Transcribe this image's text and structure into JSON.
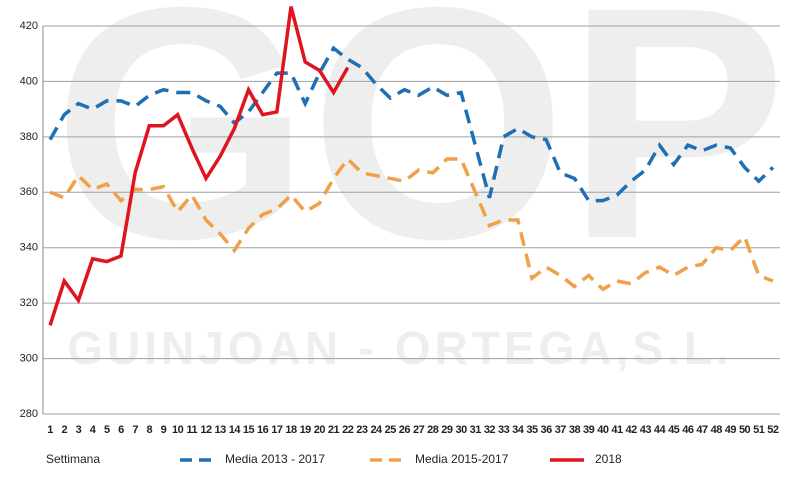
{
  "chart_data": {
    "type": "line",
    "watermark": "GOP",
    "watermark_subtitle": "GUINJOAN - ORTEGA,S.L.",
    "x_label": "Settimana",
    "categories": [
      "1",
      "2",
      "3",
      "4",
      "5",
      "6",
      "7",
      "8",
      "9",
      "10",
      "11",
      "12",
      "13",
      "14",
      "15",
      "16",
      "17",
      "18",
      "19",
      "20",
      "21",
      "22",
      "23",
      "24",
      "25",
      "26",
      "27",
      "28",
      "29",
      "30",
      "31",
      "32",
      "33",
      "34",
      "35",
      "36",
      "37",
      "38",
      "39",
      "40",
      "41",
      "42",
      "43",
      "44",
      "45",
      "46",
      "47",
      "48",
      "49",
      "50",
      "51",
      "52"
    ],
    "series": [
      {
        "name": "Media 2013 - 2017",
        "color": "#1f6fb5",
        "dashed": true,
        "values": [
          379,
          388,
          392,
          390,
          393,
          393,
          391,
          395,
          397,
          396,
          396,
          393,
          391,
          385,
          389,
          396,
          403,
          403,
          392,
          403,
          412,
          408,
          405,
          399,
          394,
          397,
          395,
          398,
          395,
          396,
          377,
          358,
          380,
          383,
          380,
          379,
          367,
          365,
          357,
          357,
          359,
          364,
          368,
          377,
          370,
          377,
          375,
          377,
          376,
          369,
          364,
          369
        ]
      },
      {
        "name": "Media 2015-2017",
        "color": "#f0a048",
        "dashed": true,
        "values": [
          360,
          358,
          366,
          361,
          363,
          357,
          361,
          361,
          362,
          353,
          359,
          350,
          345,
          339,
          347,
          352,
          354,
          359,
          353,
          356,
          365,
          372,
          367,
          366,
          365,
          364,
          368,
          367,
          372,
          372,
          360,
          348,
          350,
          350,
          329,
          333,
          330,
          326,
          330,
          325,
          328,
          327,
          331,
          333,
          330,
          333,
          334,
          340,
          339,
          344,
          330,
          328
        ]
      },
      {
        "name": "2018",
        "color": "#e0141e",
        "dashed": false,
        "values": [
          312,
          328,
          321,
          336,
          335,
          337,
          367,
          384,
          384,
          388,
          376,
          365,
          373,
          383,
          397,
          388,
          389,
          427,
          407,
          404,
          396,
          405,
          null,
          null,
          null,
          null,
          null,
          null,
          null,
          null,
          null,
          null,
          null,
          null,
          null,
          null,
          null,
          null,
          null,
          null,
          null,
          null,
          null,
          null,
          null,
          null,
          null,
          null,
          null,
          null,
          null,
          null
        ]
      }
    ],
    "ylim": [
      280,
      420
    ],
    "yticks": [
      280,
      300,
      320,
      340,
      360,
      380,
      400,
      420
    ],
    "grid": true
  }
}
